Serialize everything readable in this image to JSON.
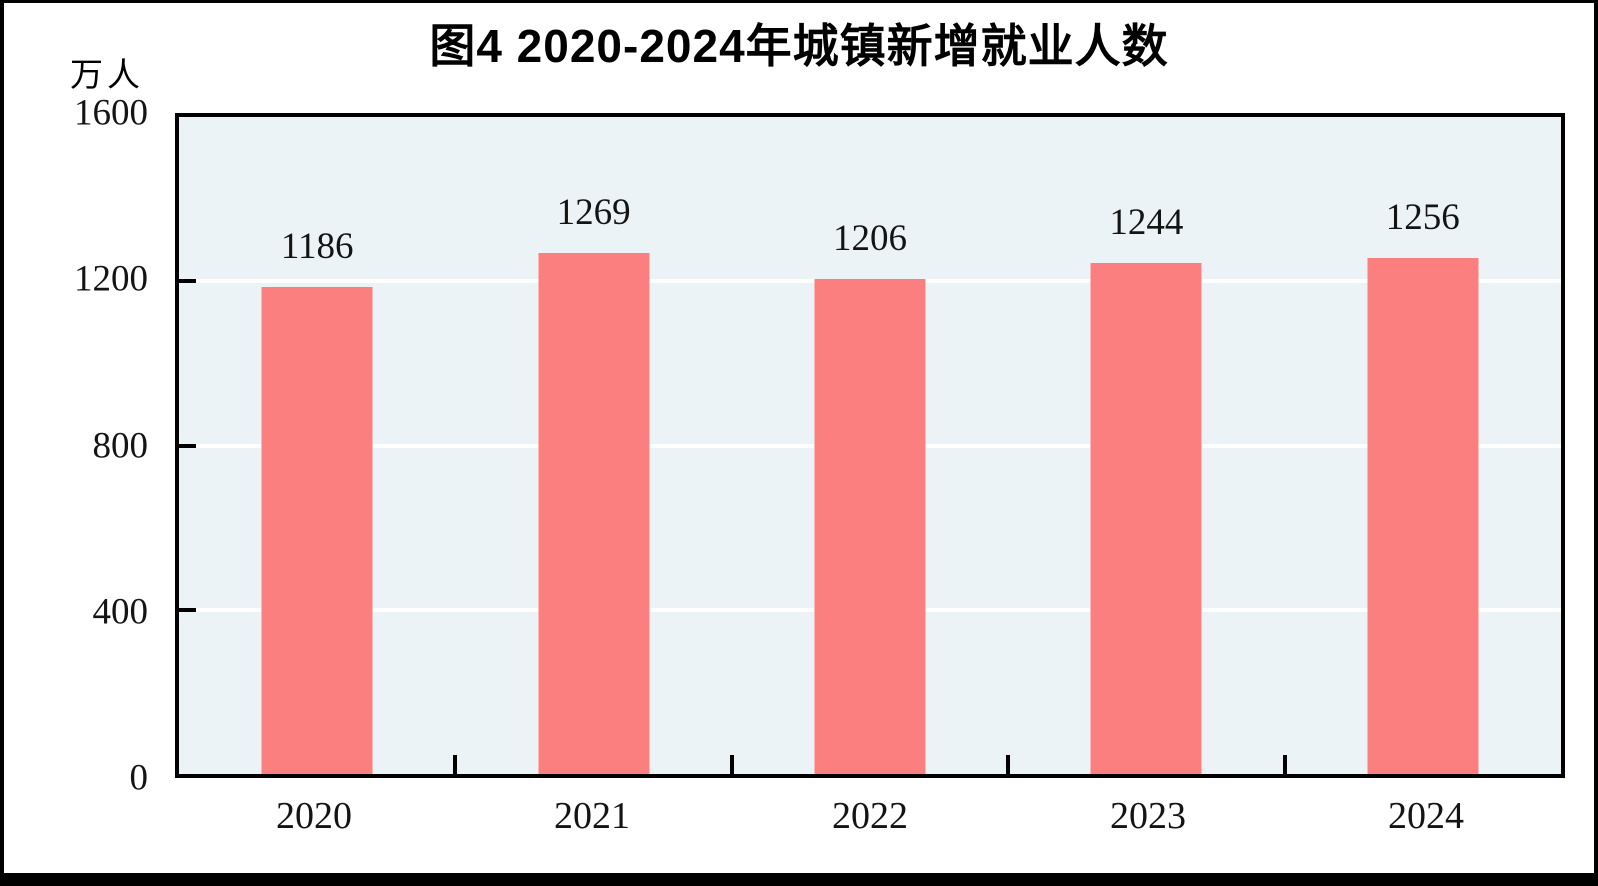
{
  "chart_data": {
    "type": "bar",
    "title": "图4  2020-2024年城镇新增就业人数",
    "unit_label": "万人",
    "categories": [
      "2020",
      "2021",
      "2022",
      "2023",
      "2024"
    ],
    "values": [
      1186,
      1269,
      1206,
      1244,
      1256
    ],
    "series_name": "城镇新增就业人数",
    "ylabel": "万人",
    "xlabel": "",
    "ylim": [
      0,
      1600
    ],
    "yticks": [
      0,
      400,
      800,
      1200,
      1600
    ],
    "grid": true,
    "legend_position": "none",
    "colors": {
      "bar": "#fc7f7f",
      "plot_background": "#ecf3f7",
      "gridline": "#ffffff",
      "axis": "#000000",
      "text": "#141414"
    }
  }
}
